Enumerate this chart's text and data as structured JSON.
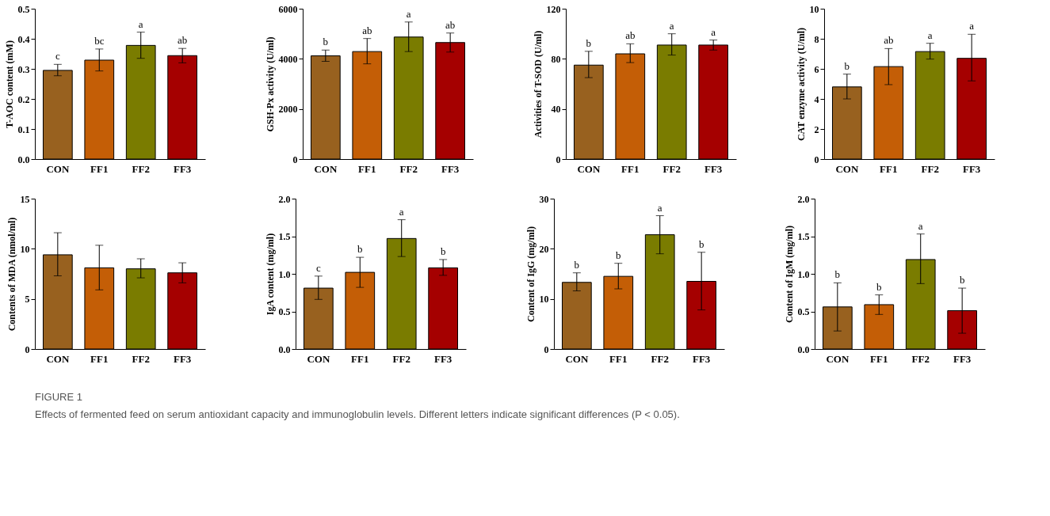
{
  "chart_data": [
    {
      "type": "bar",
      "ylabel": "T-AOC content  (mM)",
      "categories": [
        "CON",
        "FF1",
        "FF2",
        "FF3"
      ],
      "values": [
        0.295,
        0.329,
        0.378,
        0.344
      ],
      "colors": [
        "#98611f",
        "#c45e06",
        "#7a7c00",
        "#a50000"
      ],
      "errors": [
        [
          0.277,
          0.315
        ],
        [
          0.293,
          0.366
        ],
        [
          0.335,
          0.422
        ],
        [
          0.32,
          0.368
        ]
      ],
      "ylim": [
        0,
        0.5
      ],
      "yticks": [
        {
          "value": 0,
          "label": "0.0"
        },
        0.1,
        0.2,
        0.3,
        0.4,
        0.5
      ],
      "grid": false,
      "annotations": [
        {
          "text": "c",
          "x": "CON",
          "y": 0.315
        },
        {
          "text": "bc",
          "x": "FF1",
          "y": 0.366
        },
        {
          "text": "a",
          "x": "FF2",
          "y": 0.422
        },
        {
          "text": "ab",
          "x": "FF3",
          "y": 0.368
        },
        "FIGURE 1",
        "Effects of fermented feed on serum antioxidant capacity and immunoglobulin levels. Different letters indicate significant differences (P < 0.05)."
      ]
    },
    {
      "type": "bar",
      "ylabel": "GSH-Px  activity (U/ml)",
      "categories": [
        "CON",
        "FF1",
        "FF2",
        "FF3"
      ],
      "values": [
        4120,
        4290,
        4870,
        4650
      ],
      "colors": [
        "#98611f",
        "#c45e06",
        "#7a7c00",
        "#a50000"
      ],
      "errors": [
        [
          3900,
          4350
        ],
        [
          3800,
          4810
        ],
        [
          4290,
          5470
        ],
        [
          4270,
          5030
        ]
      ],
      "ylim": [
        0,
        6000
      ],
      "yticks": [
        0,
        2000,
        4000,
        6000
      ],
      "grid": false,
      "annotations": [
        {
          "text": "b",
          "x": "CON",
          "y": 4350
        },
        {
          "text": "ab",
          "x": "FF1",
          "y": 4810
        },
        {
          "text": "a",
          "x": "FF2",
          "y": 5470
        },
        {
          "text": "ab",
          "x": "FF3",
          "y": 5030
        }
      ]
    },
    {
      "type": "bar",
      "ylabel": "Activities of T-SOD  (U/ml)",
      "categories": [
        "CON",
        "FF1",
        "FF2",
        "FF3"
      ],
      "values": [
        75,
        84,
        91,
        91
      ],
      "colors": [
        "#98611f",
        "#c45e06",
        "#7a7c00",
        "#a50000"
      ],
      "errors": [
        [
          65,
          86
        ],
        [
          77,
          92
        ],
        [
          83,
          100
        ],
        [
          87,
          95
        ]
      ],
      "ylim": [
        0,
        120
      ],
      "yticks": [
        0,
        40,
        80,
        120
      ],
      "grid": false,
      "annotations": [
        {
          "text": "b",
          "x": "CON",
          "y": 86
        },
        {
          "text": "ab",
          "x": "FF1",
          "y": 92
        },
        {
          "text": "a",
          "x": "FF2",
          "y": 100
        },
        {
          "text": "a",
          "x": "FF3",
          "y": 95
        }
      ]
    },
    {
      "type": "bar",
      "ylabel": "CAT enzyme activity   (U/ml)",
      "categories": [
        "CON",
        "FF1",
        "FF2",
        "FF3"
      ],
      "values": [
        4.8,
        6.15,
        7.15,
        6.7
      ],
      "colors": [
        "#98611f",
        "#c45e06",
        "#7a7c00",
        "#a50000"
      ],
      "errors": [
        [
          4.0,
          5.65
        ],
        [
          4.95,
          7.35
        ],
        [
          6.65,
          7.7
        ],
        [
          5.2,
          8.3
        ]
      ],
      "ylim": [
        0,
        10
      ],
      "yticks": [
        0,
        2,
        4,
        6,
        8,
        10
      ],
      "grid": false,
      "annotations": [
        {
          "text": "b",
          "x": "CON",
          "y": 5.65
        },
        {
          "text": "ab",
          "x": "FF1",
          "y": 7.35
        },
        {
          "text": "a",
          "x": "FF2",
          "y": 7.7
        },
        {
          "text": "a",
          "x": "FF3",
          "y": 8.3
        }
      ]
    },
    {
      "type": "bar",
      "ylabel": "Contents of MDA  (nmol/ml)",
      "categories": [
        "CON",
        "FF1",
        "FF2",
        "FF3"
      ],
      "values": [
        9.4,
        8.1,
        8.0,
        7.6
      ],
      "colors": [
        "#98611f",
        "#c45e06",
        "#7a7c00",
        "#a50000"
      ],
      "errors": [
        [
          7.3,
          11.6
        ],
        [
          5.9,
          10.35
        ],
        [
          7.1,
          9.0
        ],
        [
          6.6,
          8.6
        ]
      ],
      "ylim": [
        0,
        15
      ],
      "yticks": [
        0,
        5,
        10,
        15
      ],
      "grid": false
    },
    {
      "type": "bar",
      "ylabel": "IgA content (mg/ml)",
      "categories": [
        "CON",
        "FF1",
        "FF2",
        "FF3"
      ],
      "values": [
        0.81,
        1.02,
        1.47,
        1.08
      ],
      "colors": [
        "#98611f",
        "#c45e06",
        "#7a7c00",
        "#a50000"
      ],
      "errors": [
        [
          0.66,
          0.97
        ],
        [
          0.82,
          1.22
        ],
        [
          1.23,
          1.72
        ],
        [
          0.98,
          1.19
        ]
      ],
      "ylim": [
        0,
        2
      ],
      "yticks": [
        {
          "value": 0,
          "label": "0.0"
        },
        0.5,
        {
          "value": 1,
          "label": "1.0"
        },
        1.5,
        {
          "value": 2,
          "label": "2.0"
        }
      ],
      "grid": false,
      "annotations": [
        {
          "text": "c",
          "x": "CON",
          "y": 0.97
        },
        {
          "text": "b",
          "x": "FF1",
          "y": 1.22
        },
        {
          "text": "a",
          "x": "FF2",
          "y": 1.72
        },
        {
          "text": "b",
          "x": "FF3",
          "y": 1.19
        }
      ]
    },
    {
      "type": "bar",
      "ylabel": "Content of IgG  (mg/ml)",
      "categories": [
        "CON",
        "FF1",
        "FF2",
        "FF3"
      ],
      "values": [
        13.3,
        14.5,
        22.8,
        13.5
      ],
      "colors": [
        "#98611f",
        "#c45e06",
        "#7a7c00",
        "#a50000"
      ],
      "errors": [
        [
          11.6,
          15.2
        ],
        [
          12.0,
          17.1
        ],
        [
          19.0,
          26.6
        ],
        [
          7.8,
          19.3
        ]
      ],
      "ylim": [
        0,
        30
      ],
      "yticks": [
        0,
        10,
        20,
        30
      ],
      "grid": false,
      "annotations": [
        {
          "text": "b",
          "x": "CON",
          "y": 15.2
        },
        {
          "text": "b",
          "x": "FF1",
          "y": 17.1
        },
        {
          "text": "a",
          "x": "FF2",
          "y": 26.6
        },
        {
          "text": "b",
          "x": "FF3",
          "y": 19.3
        }
      ]
    },
    {
      "type": "bar",
      "ylabel": "Content of IgM  (mg/ml)",
      "categories": [
        "CON",
        "FF1",
        "FF2",
        "FF3"
      ],
      "values": [
        0.56,
        0.59,
        1.19,
        0.51
      ],
      "colors": [
        "#98611f",
        "#c45e06",
        "#7a7c00",
        "#a50000"
      ],
      "errors": [
        [
          0.24,
          0.88
        ],
        [
          0.46,
          0.72
        ],
        [
          0.87,
          1.53
        ],
        [
          0.21,
          0.81
        ]
      ],
      "ylim": [
        0,
        2
      ],
      "yticks": [
        {
          "value": 0,
          "label": "0.0"
        },
        0.5,
        {
          "value": 1,
          "label": "1.0"
        },
        1.5,
        {
          "value": 2,
          "label": "2.0"
        }
      ],
      "grid": false,
      "annotations": [
        {
          "text": "b",
          "x": "CON",
          "y": 0.88
        },
        {
          "text": "b",
          "x": "FF1",
          "y": 0.72
        },
        {
          "text": "a",
          "x": "FF2",
          "y": 1.53
        },
        {
          "text": "b",
          "x": "FF3",
          "y": 0.81
        }
      ]
    }
  ]
}
